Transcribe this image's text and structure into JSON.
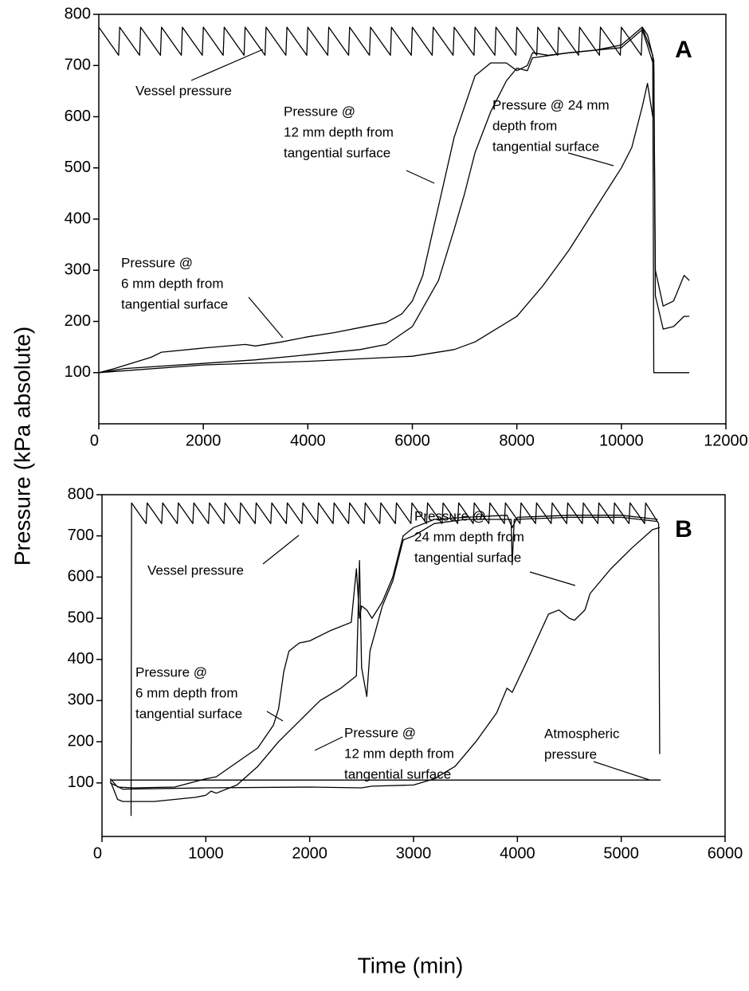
{
  "chart_data": [
    {
      "type": "line",
      "panel": "A",
      "ylabel": "Pressure (kPa absolute)",
      "xlim": [
        0,
        12000
      ],
      "ylim": [
        0,
        800
      ],
      "xticks": [
        0,
        2000,
        4000,
        6000,
        8000,
        10000,
        12000
      ],
      "yticks": [
        100,
        200,
        300,
        400,
        500,
        600,
        700,
        800
      ],
      "series": [
        {
          "color": "#000000",
          "x": [
            0,
            380,
            400,
            780,
            800,
            1180,
            1200,
            1580,
            1600,
            1980,
            2000,
            2380,
            2400,
            2780,
            2800,
            3180,
            3200,
            3580,
            3600,
            3980,
            4000,
            4380,
            4400,
            4780,
            4800,
            5180,
            5200,
            5580,
            5600,
            5980,
            6000,
            6380,
            6400,
            6780,
            6800,
            7180,
            7200,
            7580,
            7600,
            7980,
            8000,
            8380,
            8400,
            8780,
            8800,
            9180,
            9200,
            9580,
            9600,
            9980,
            10000,
            10380,
            10400,
            10600,
            10620,
            11300
          ],
          "values": [
            775,
            720,
            775,
            720,
            775,
            720,
            775,
            720,
            775,
            720,
            775,
            720,
            775,
            720,
            775,
            720,
            775,
            720,
            775,
            720,
            775,
            720,
            775,
            720,
            775,
            720,
            775,
            720,
            775,
            720,
            775,
            720,
            775,
            720,
            775,
            720,
            775,
            720,
            775,
            720,
            775,
            720,
            775,
            720,
            775,
            720,
            775,
            720,
            775,
            720,
            775,
            720,
            775,
            720,
            100,
            100
          ]
        },
        {
          "color": "#000000",
          "x": [
            0,
            300,
            1000,
            1200,
            2000,
            2800,
            3000,
            3500,
            4000,
            4500,
            5000,
            5500,
            5800,
            6000,
            6200,
            6400,
            6600,
            6800,
            7000,
            7200,
            7500,
            7800,
            8000,
            8200,
            8300,
            8600,
            9000,
            9500,
            10000,
            10400,
            10500,
            10620,
            10650,
            10800,
            11000,
            11200,
            11300
          ],
          "values": [
            100,
            108,
            130,
            140,
            148,
            155,
            152,
            160,
            170,
            178,
            188,
            198,
            215,
            240,
            290,
            380,
            470,
            560,
            620,
            680,
            705,
            705,
            690,
            700,
            725,
            720,
            725,
            730,
            740,
            775,
            760,
            710,
            300,
            230,
            240,
            290,
            280
          ]
        },
        {
          "color": "#000000",
          "x": [
            0,
            500,
            2000,
            3000,
            4000,
            5000,
            5500,
            6000,
            6500,
            6800,
            7000,
            7200,
            7500,
            7800,
            8000,
            8200,
            8300,
            9000,
            10000,
            10400,
            10620,
            10650,
            10800,
            11000,
            11200,
            11300
          ],
          "values": [
            100,
            108,
            118,
            125,
            135,
            145,
            155,
            190,
            280,
            380,
            450,
            530,
            610,
            670,
            695,
            690,
            715,
            725,
            735,
            770,
            700,
            250,
            185,
            190,
            210,
            210
          ]
        },
        {
          "color": "#000000",
          "x": [
            0,
            2000,
            4000,
            6000,
            6800,
            7200,
            8000,
            8500,
            9000,
            9500,
            10000,
            10200,
            10400,
            10500,
            10600
          ],
          "values": [
            100,
            115,
            122,
            132,
            145,
            160,
            210,
            270,
            340,
            420,
            500,
            540,
            620,
            665,
            600
          ]
        }
      ],
      "annotations": [
        {
          "text": [
            "Vessel pressure"
          ]
        },
        {
          "text": [
            "Pressure @",
            "12 mm depth from",
            "tangential surface"
          ]
        },
        {
          "text": [
            "Pressure @ 24 mm",
            "depth from",
            "tangential surface"
          ]
        },
        {
          "text": [
            "Pressure @",
            "6 mm depth from",
            "tangential surface"
          ]
        }
      ]
    },
    {
      "type": "line",
      "panel": "B",
      "xlabel": "Time (min)",
      "xlim": [
        0,
        6000
      ],
      "ylim": [
        -30,
        800
      ],
      "xticks": [
        0,
        1000,
        2000,
        3000,
        4000,
        5000,
        6000
      ],
      "yticks": [
        100,
        200,
        300,
        400,
        500,
        600,
        700,
        800
      ],
      "series": [
        {
          "color": "#000000",
          "x": [
            280,
            285,
            425,
            435,
            575,
            585,
            725,
            735,
            875,
            885,
            1025,
            1035,
            1175,
            1185,
            1325,
            1335,
            1475,
            1485,
            1625,
            1635,
            1775,
            1785,
            1925,
            1935,
            2075,
            2085,
            2225,
            2235,
            2375,
            2385,
            2525,
            2535,
            2675,
            2685,
            2825,
            2835,
            2975,
            2985,
            3125,
            3135,
            3275,
            3285,
            3425,
            3435,
            3575,
            3585,
            3725,
            3735,
            3875,
            3885,
            4025,
            4035,
            4175,
            4185,
            4325,
            4335,
            4475,
            4485,
            4625,
            4635,
            4775,
            4785,
            4925,
            4935,
            5075,
            5085,
            5225,
            5235,
            5360,
            5370
          ],
          "values": [
            20,
            780,
            730,
            780,
            730,
            780,
            730,
            780,
            730,
            780,
            730,
            780,
            730,
            780,
            730,
            780,
            730,
            780,
            730,
            780,
            730,
            780,
            730,
            780,
            730,
            780,
            730,
            780,
            730,
            780,
            730,
            780,
            730,
            780,
            730,
            780,
            730,
            780,
            730,
            780,
            730,
            780,
            730,
            780,
            730,
            780,
            730,
            780,
            730,
            780,
            730,
            780,
            730,
            780,
            730,
            780,
            730,
            780,
            730,
            780,
            730,
            780,
            730,
            780,
            730,
            780,
            730,
            780,
            730,
            170
          ]
        },
        {
          "color": "#000000",
          "x": [
            80,
            150,
            300,
            700,
            1000,
            1100,
            1300,
            1500,
            1650,
            1700,
            1750,
            1800,
            1900,
            2000,
            2200,
            2400,
            2450,
            2480,
            2500,
            2550,
            2600,
            2700,
            2800,
            2900,
            3000,
            3200,
            3500,
            3900,
            3950,
            4000,
            4500,
            5000,
            5350
          ],
          "values": [
            110,
            90,
            88,
            90,
            110,
            115,
            150,
            185,
            240,
            280,
            370,
            420,
            440,
            445,
            470,
            490,
            620,
            500,
            530,
            520,
            500,
            540,
            600,
            700,
            720,
            740,
            745,
            750,
            720,
            745,
            750,
            750,
            740
          ]
        },
        {
          "color": "#000000",
          "x": [
            80,
            150,
            200,
            500,
            900,
            1000,
            1050,
            1100,
            1300,
            1500,
            1700,
            1900,
            2100,
            2300,
            2450,
            2480,
            2500,
            2550,
            2580,
            2700,
            2800,
            2900,
            3000,
            3200,
            3500,
            3940,
            3950,
            3970,
            4500,
            5000,
            5350
          ],
          "values": [
            105,
            60,
            55,
            55,
            65,
            70,
            80,
            75,
            95,
            140,
            200,
            250,
            300,
            330,
            360,
            640,
            380,
            310,
            420,
            530,
            590,
            690,
            700,
            730,
            740,
            740,
            630,
            740,
            745,
            745,
            735
          ]
        },
        {
          "color": "#000000",
          "x": [
            80,
            200,
            1000,
            2000,
            2500,
            2600,
            3000,
            3200,
            3400,
            3600,
            3800,
            3900,
            3950,
            4100,
            4300,
            4400,
            4500,
            4550,
            4650,
            4700,
            4900,
            5100,
            5300,
            5370
          ],
          "values": [
            100,
            85,
            88,
            90,
            88,
            92,
            95,
            110,
            140,
            200,
            270,
            330,
            320,
            400,
            510,
            520,
            500,
            495,
            520,
            560,
            620,
            670,
            715,
            720
          ]
        },
        {
          "color": "#000000",
          "x": [
            80,
            5380
          ],
          "values": [
            107,
            107
          ]
        }
      ],
      "annotations": [
        {
          "text": [
            "Vessel pressure"
          ]
        },
        {
          "text": [
            "Pressure @",
            "24 mm depth from",
            "tangential surface"
          ]
        },
        {
          "text": [
            "Pressure @",
            "6 mm depth from",
            "tangential surface"
          ]
        },
        {
          "text": [
            "Pressure @",
            "12 mm depth from",
            "tangential surface"
          ]
        },
        {
          "text": [
            "Atmospheric",
            "pressure"
          ]
        }
      ]
    }
  ]
}
